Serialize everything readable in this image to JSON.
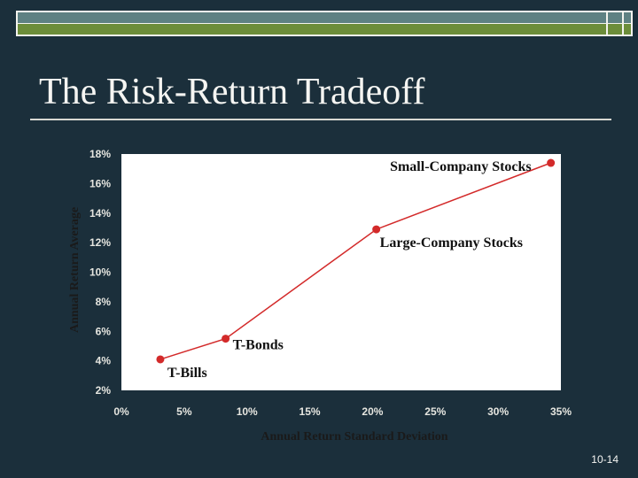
{
  "slide": {
    "title": "The Risk-Return Tradeoff",
    "page_number": "10-14"
  },
  "colors": {
    "background": "#1b2f3b",
    "plot_area": "#ffffff",
    "series_line": "#d32a2a",
    "title_text": "#f5f5f2"
  },
  "chart_data": {
    "type": "line",
    "title": "",
    "xlabel": "Annual Return Standard Deviation",
    "ylabel": "Annual Return Average",
    "xlim": [
      0,
      35
    ],
    "ylim": [
      2,
      18
    ],
    "x_ticks": [
      0,
      5,
      10,
      15,
      20,
      25,
      30,
      35
    ],
    "x_tick_labels": [
      "0%",
      "5%",
      "10%",
      "15%",
      "20%",
      "25%",
      "30%",
      "35%"
    ],
    "y_ticks": [
      2,
      4,
      6,
      8,
      10,
      12,
      14,
      16,
      18
    ],
    "y_tick_labels": [
      "2%",
      "4%",
      "6%",
      "8%",
      "10%",
      "12%",
      "14%",
      "16%",
      "18%"
    ],
    "grid": false,
    "series": [
      {
        "points": [
          {
            "label": "T-Bills",
            "x": 3.1,
            "y": 4.1
          },
          {
            "label": "T-Bonds",
            "x": 8.3,
            "y": 5.5
          },
          {
            "label": "Large-Company Stocks",
            "x": 20.3,
            "y": 12.9
          },
          {
            "label": "Small-Company Stocks",
            "x": 34.2,
            "y": 17.4
          }
        ]
      }
    ]
  }
}
